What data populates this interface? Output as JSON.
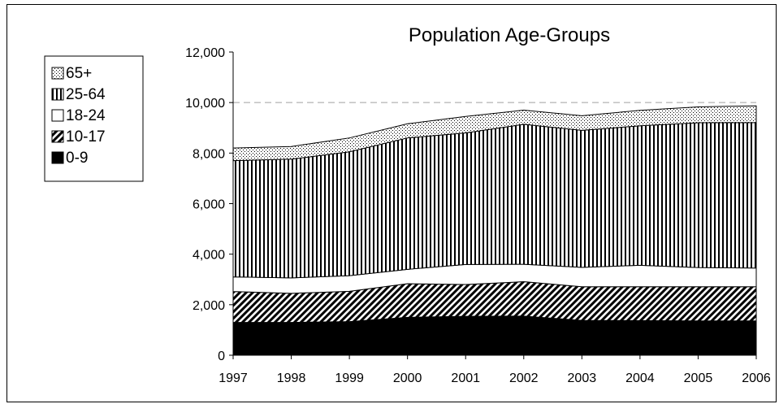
{
  "chart_data": {
    "type": "area",
    "stacked": true,
    "title": "Population Age-Groups",
    "xlabel": "",
    "ylabel": "",
    "x": [
      "1997",
      "1998",
      "1999",
      "2000",
      "2001",
      "2002",
      "2003",
      "2004",
      "2005",
      "2006"
    ],
    "ylim": [
      0,
      12000
    ],
    "yticks": [
      "0",
      "2,000",
      "4,000",
      "6,000",
      "8,000",
      "10,000",
      "12,000"
    ],
    "ytick_values": [
      0,
      2000,
      4000,
      6000,
      8000,
      10000,
      12000
    ],
    "gridline": {
      "value": 10000,
      "style": "dashed"
    },
    "legend_position": "left",
    "series": [
      {
        "name": "0-9",
        "pattern": "solid-black",
        "values": [
          1300,
          1300,
          1330,
          1500,
          1540,
          1550,
          1380,
          1370,
          1360,
          1360
        ]
      },
      {
        "name": "10-17",
        "pattern": "diagonal-hatch",
        "values": [
          1220,
          1150,
          1200,
          1330,
          1260,
          1360,
          1330,
          1340,
          1350,
          1350
        ]
      },
      {
        "name": "18-24",
        "pattern": "white",
        "values": [
          580,
          610,
          620,
          570,
          790,
          690,
          770,
          850,
          760,
          740
        ]
      },
      {
        "name": "25-64",
        "pattern": "vertical-lines",
        "values": [
          4600,
          4700,
          4900,
          5200,
          5210,
          5540,
          5420,
          5520,
          5730,
          5760
        ]
      },
      {
        "name": "65+",
        "pattern": "dots",
        "values": [
          500,
          500,
          550,
          560,
          650,
          560,
          580,
          610,
          630,
          660
        ]
      }
    ],
    "legend_order": [
      "65+",
      "25-64",
      "18-24",
      "10-17",
      "0-9"
    ]
  }
}
